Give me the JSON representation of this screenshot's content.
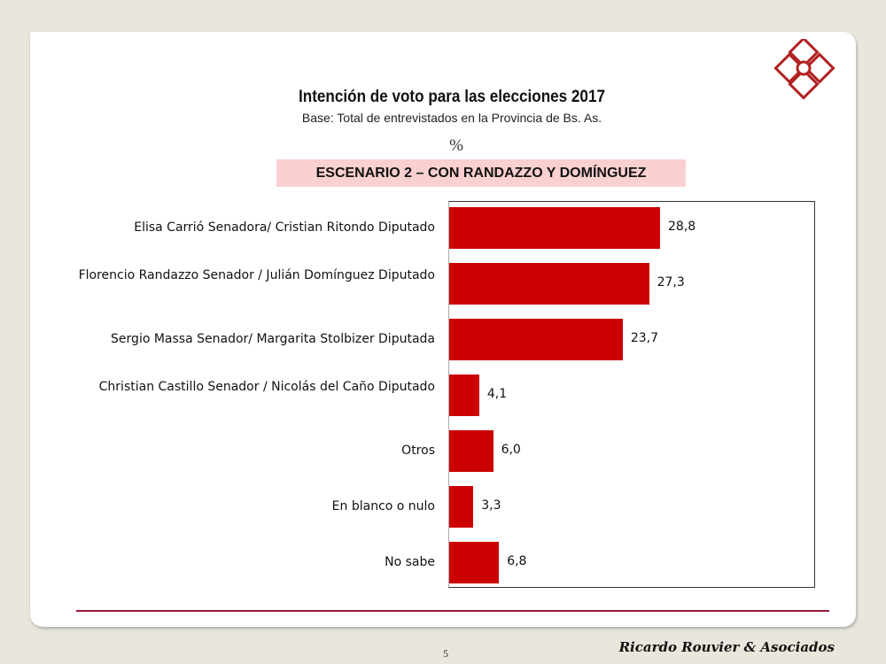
{
  "header": {
    "title": "Intención de voto para las elecciones 2017",
    "subtitle": "Base: Total de entrevistados en la Provincia de Bs. As.",
    "unit": "%",
    "scenario": "ESCENARIO 2 – CON RANDAZZO Y DOMÍNGUEZ"
  },
  "footer": {
    "page": "5",
    "brand": "Ricardo Rouvier & Asociados"
  },
  "colors": {
    "bar": "#cc0000",
    "logo": "#b22222",
    "scenario_bg": "#fbd0d0"
  },
  "chart_data": {
    "type": "bar",
    "orientation": "horizontal",
    "title": "Intención de voto para las elecciones 2017",
    "categories": [
      "Elisa Carrió Senadora/ Cristian Ritondo Diputado",
      "Florencio Randazzo Senador / Julián Domínguez Diputado",
      "Sergio Massa Senador/ Margarita Stolbizer Diputada",
      "Christian Castillo Senador / Nicolás del Caño Diputado",
      "Otros",
      "En blanco o nulo",
      "No sabe"
    ],
    "values": [
      28.8,
      27.3,
      23.7,
      4.1,
      6.0,
      3.3,
      6.8
    ],
    "labels": [
      "28,8",
      "27,3",
      "23,7",
      "4,1",
      "6,0",
      "3,3",
      "6,8"
    ],
    "xlim": [
      0,
      50
    ],
    "grid": false,
    "legend": "none"
  }
}
